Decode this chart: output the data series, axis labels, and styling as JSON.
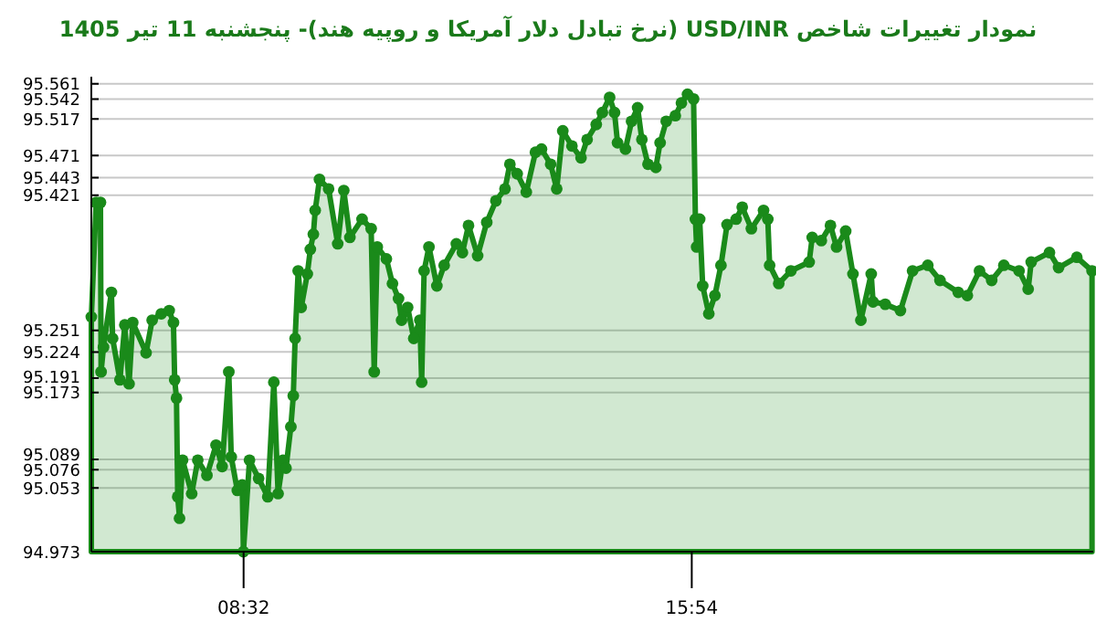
{
  "chart_data": {
    "type": "area",
    "title": "نمودار تغییرات شاخص USD/INR (نرخ تبادل دلار آمریکا و روپیه هند)- پنجشنبه  11 تیر 1405",
    "xlim": [
      6.03,
      22.5
    ],
    "ylim": [
      94.973,
      95.57
    ],
    "xticks": [
      {
        "value": 8.533,
        "label": "08:32"
      },
      {
        "value": 15.9,
        "label": "15:54"
      }
    ],
    "yticks": [
      95.561,
      95.542,
      95.517,
      95.471,
      95.443,
      95.421,
      95.251,
      95.224,
      95.191,
      95.173,
      95.089,
      95.076,
      95.053,
      94.973
    ],
    "grid": "y",
    "marker": "circle",
    "line_style": "solid",
    "series": [
      {
        "color": "#1a8a1a",
        "x": [
          6.03,
          6.11,
          6.18,
          6.19,
          6.23,
          6.36,
          6.38,
          6.5,
          6.58,
          6.65,
          6.71,
          6.93,
          7.03,
          7.18,
          7.31,
          7.38,
          7.4,
          7.43,
          7.45,
          7.48,
          7.53,
          7.68,
          7.78,
          7.93,
          8.08,
          8.18,
          8.29,
          8.33,
          8.43,
          8.51,
          8.53,
          8.63,
          8.78,
          8.93,
          9.03,
          9.1,
          9.18,
          9.23,
          9.31,
          9.35,
          9.38,
          9.43,
          9.48,
          9.58,
          9.63,
          9.68,
          9.71,
          9.78,
          9.93,
          10.08,
          10.18,
          10.28,
          10.48,
          10.63,
          10.68,
          10.73,
          10.88,
          10.98,
          11.08,
          11.13,
          11.23,
          11.33,
          11.43,
          11.46,
          11.5,
          11.58,
          11.71,
          11.83,
          12.03,
          12.13,
          12.23,
          12.38,
          12.53,
          12.68,
          12.83,
          12.91,
          13.03,
          13.18,
          13.33,
          13.43,
          13.58,
          13.68,
          13.78,
          13.93,
          14.08,
          14.18,
          14.33,
          14.43,
          14.55,
          14.63,
          14.68,
          14.81,
          14.91,
          15.01,
          15.08,
          15.18,
          15.31,
          15.38,
          15.48,
          15.63,
          15.73,
          15.83,
          15.93,
          15.96,
          15.98,
          16.03,
          16.08,
          16.18,
          16.28,
          16.38,
          16.48,
          16.63,
          16.73,
          16.88,
          17.08,
          17.15,
          17.18,
          17.33,
          17.53,
          17.83,
          17.88,
          18.03,
          18.18,
          18.28,
          18.43,
          18.55,
          18.68,
          18.85,
          18.88,
          19.08,
          19.33,
          19.53,
          19.78,
          19.98,
          20.28,
          20.43,
          20.63,
          20.83,
          21.03,
          21.28,
          21.43,
          21.48,
          21.78,
          21.93,
          22.23,
          22.48
        ],
        "values": [
          95.268,
          95.412,
          95.412,
          95.199,
          95.23,
          95.299,
          95.241,
          95.189,
          95.258,
          95.184,
          95.261,
          95.223,
          95.264,
          95.272,
          95.276,
          95.261,
          95.189,
          95.166,
          95.042,
          95.015,
          95.088,
          95.046,
          95.088,
          95.069,
          95.107,
          95.08,
          95.199,
          95.092,
          95.05,
          95.057,
          94.973,
          95.088,
          95.065,
          95.042,
          95.186,
          95.046,
          95.088,
          95.078,
          95.13,
          95.169,
          95.241,
          95.326,
          95.28,
          95.322,
          95.353,
          95.372,
          95.402,
          95.441,
          95.429,
          95.36,
          95.427,
          95.368,
          95.391,
          95.379,
          95.199,
          95.356,
          95.341,
          95.31,
          95.291,
          95.264,
          95.28,
          95.241,
          95.264,
          95.186,
          95.326,
          95.356,
          95.307,
          95.333,
          95.36,
          95.349,
          95.383,
          95.345,
          95.387,
          95.414,
          95.429,
          95.46,
          95.448,
          95.425,
          95.475,
          95.479,
          95.46,
          95.429,
          95.502,
          95.483,
          95.468,
          95.491,
          95.51,
          95.525,
          95.544,
          95.525,
          95.487,
          95.479,
          95.514,
          95.531,
          95.491,
          95.46,
          95.456,
          95.487,
          95.514,
          95.521,
          95.537,
          95.548,
          95.542,
          95.391,
          95.356,
          95.391,
          95.307,
          95.272,
          95.295,
          95.333,
          95.384,
          95.391,
          95.406,
          95.379,
          95.402,
          95.391,
          95.333,
          95.31,
          95.326,
          95.337,
          95.368,
          95.364,
          95.383,
          95.356,
          95.376,
          95.322,
          95.264,
          95.322,
          95.287,
          95.284,
          95.276,
          95.326,
          95.333,
          95.314,
          95.299,
          95.295,
          95.326,
          95.314,
          95.333,
          95.326,
          95.303,
          95.337,
          95.349,
          95.33,
          95.343,
          95.326
        ]
      }
    ]
  }
}
